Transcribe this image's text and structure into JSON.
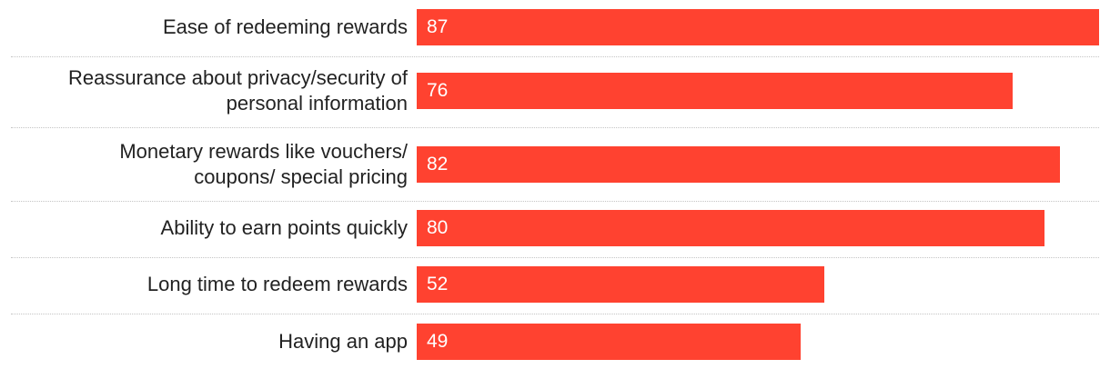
{
  "chart_data": {
    "type": "bar",
    "orientation": "horizontal",
    "categories": [
      "Ease of redeeming rewards",
      "Reassurance about privacy/security of\npersonal information",
      "Monetary rewards like vouchers/\ncoupons/ special pricing",
      "Ability to earn points quickly",
      "Long time to redeem rewards",
      "Having an app"
    ],
    "values": [
      87,
      76,
      82,
      80,
      52,
      49
    ],
    "value_labels": [
      "87",
      "76",
      "82",
      "80",
      "52",
      "49"
    ],
    "xlim": [
      0,
      87
    ],
    "grid": false,
    "bar_color": "#ff4230",
    "data_labels": "inside-left"
  }
}
